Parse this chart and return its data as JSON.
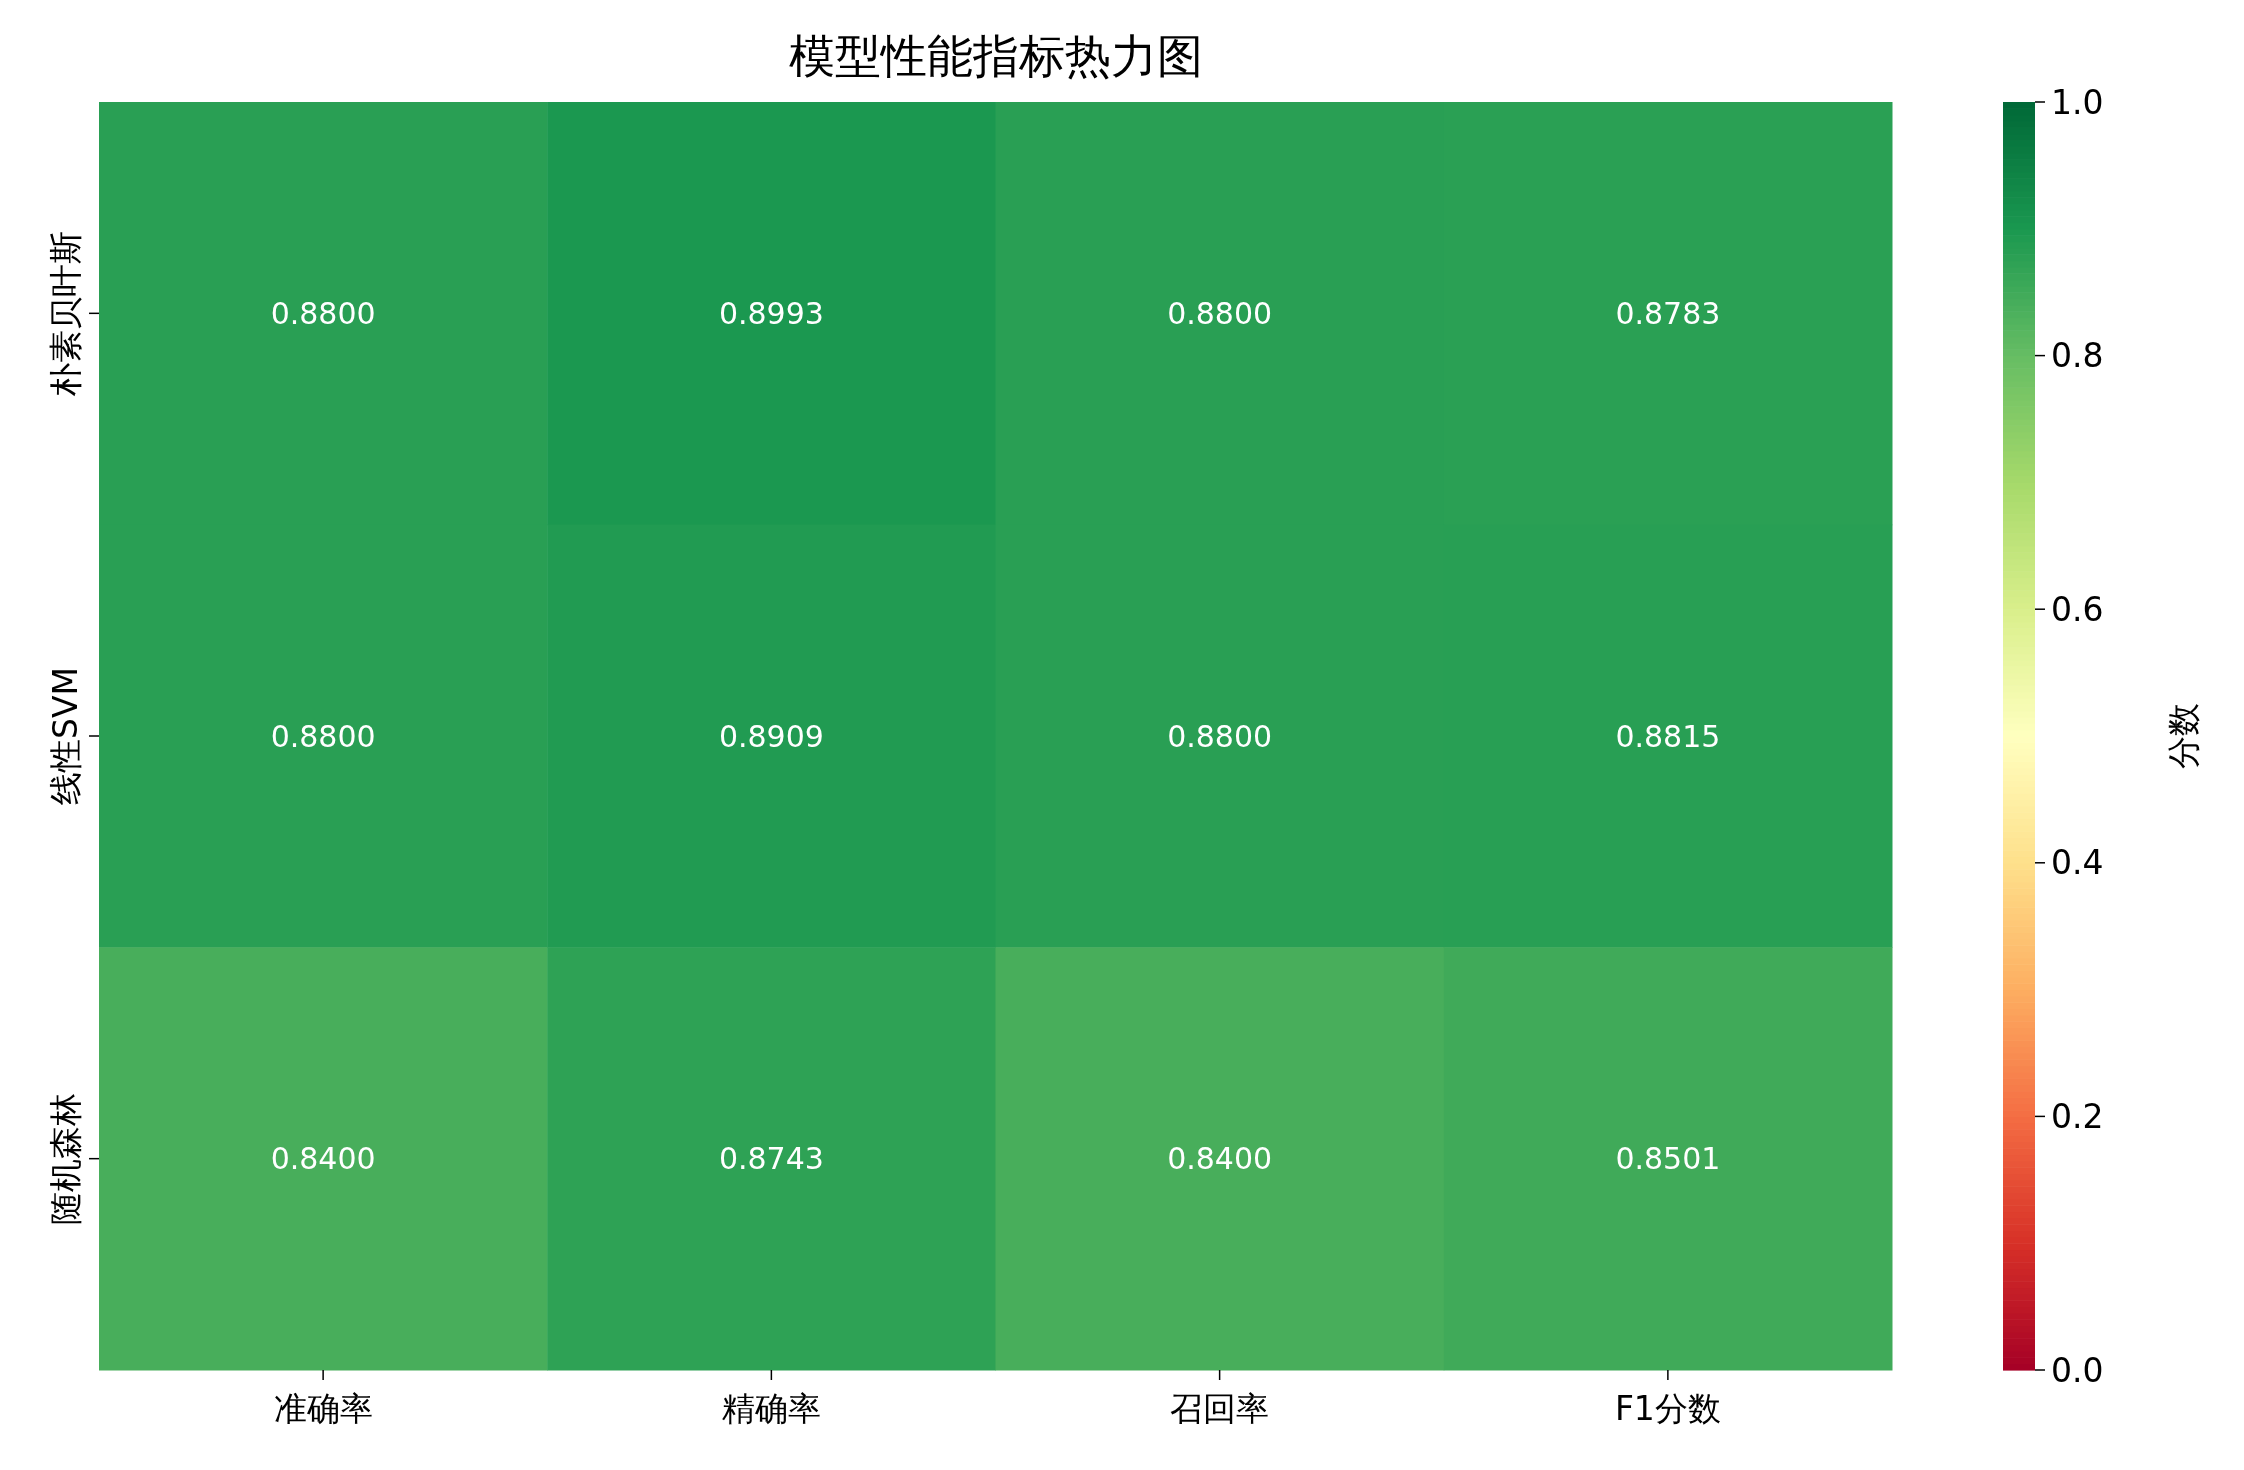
{
  "chart_data": {
    "type": "heatmap",
    "title": "模型性能指标热力图",
    "categories": [
      "准确率",
      "精确率",
      "召回率",
      "F1分数"
    ],
    "y_categories": [
      "朴素贝叶斯",
      "线性SVM",
      "随机森林"
    ],
    "cells": [
      [
        0.88,
        0.8993,
        0.88,
        0.8783
      ],
      [
        0.88,
        0.8909,
        0.88,
        0.8815
      ],
      [
        0.84,
        0.8743,
        0.84,
        0.8501
      ]
    ],
    "cell_labels": [
      [
        "0.8800",
        "0.8993",
        "0.8800",
        "0.8783"
      ],
      [
        "0.8800",
        "0.8909",
        "0.8800",
        "0.8815"
      ],
      [
        "0.8400",
        "0.8743",
        "0.8400",
        "0.8501"
      ]
    ],
    "clim": [
      0,
      1
    ],
    "cticks": [
      {
        "value": 0,
        "label": "0.0"
      },
      {
        "value": 0.2,
        "label": "0.2"
      },
      {
        "value": 0.4,
        "label": "0.4"
      },
      {
        "value": 0.6,
        "label": "0.6"
      },
      {
        "value": 0.8,
        "label": "0.8"
      },
      {
        "value": 1,
        "label": "1.0"
      }
    ],
    "clabel": "分数"
  }
}
